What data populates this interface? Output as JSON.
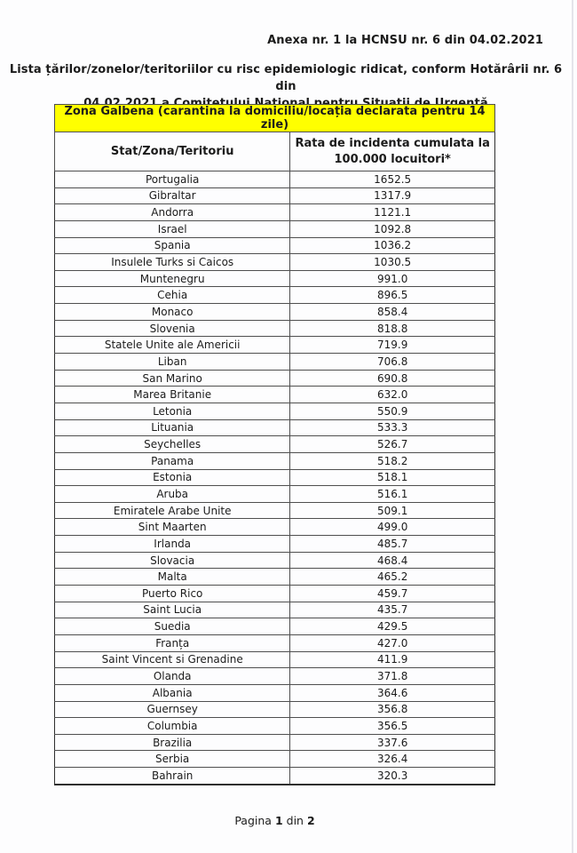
{
  "page": {
    "annex_line": "Anexa nr. 1 la HCNSU nr. 6 din 04.02.2021",
    "title_lines": [
      "Lista țărilor/zonelor/teritoriilor cu risc epidemiologic ridicat, conform Hotărârii nr. 6 din",
      "04.02.2021 a Comitetului Național pentru Situații de Urgență"
    ],
    "footer": {
      "label": "Pagina",
      "page": "1",
      "of_label": "din",
      "total": "2"
    }
  },
  "table": {
    "zone_header": "Zona Galbena (carantina la domiciliu/locația declarata pentru 14 zile)",
    "zone_color": "#ffff00",
    "col1_header": "Stat/Zona/Teritoriu",
    "col2_header_lines": [
      "Rata de incidenta cumulata la",
      "100.000 locuitori*"
    ],
    "rows": [
      {
        "stat": "Portugalia",
        "rata": "1652.5"
      },
      {
        "stat": "Gibraltar",
        "rata": "1317.9"
      },
      {
        "stat": "Andorra",
        "rata": "1121.1"
      },
      {
        "stat": "Israel",
        "rata": "1092.8"
      },
      {
        "stat": "Spania",
        "rata": "1036.2"
      },
      {
        "stat": "Insulele Turks si Caicos",
        "rata": "1030.5"
      },
      {
        "stat": "Muntenegru",
        "rata": "991.0"
      },
      {
        "stat": "Cehia",
        "rata": "896.5"
      },
      {
        "stat": "Monaco",
        "rata": "858.4"
      },
      {
        "stat": "Slovenia",
        "rata": "818.8"
      },
      {
        "stat": "Statele Unite ale Americii",
        "rata": "719.9"
      },
      {
        "stat": "Liban",
        "rata": "706.8"
      },
      {
        "stat": "San Marino",
        "rata": "690.8"
      },
      {
        "stat": "Marea Britanie",
        "rata": "632.0"
      },
      {
        "stat": "Letonia",
        "rata": "550.9"
      },
      {
        "stat": "Lituania",
        "rata": "533.3"
      },
      {
        "stat": "Seychelles",
        "rata": "526.7"
      },
      {
        "stat": "Panama",
        "rata": "518.2"
      },
      {
        "stat": "Estonia",
        "rata": "518.1"
      },
      {
        "stat": "Aruba",
        "rata": "516.1"
      },
      {
        "stat": "Emiratele Arabe Unite",
        "rata": "509.1"
      },
      {
        "stat": "Sint Maarten",
        "rata": "499.0"
      },
      {
        "stat": "Irlanda",
        "rata": "485.7"
      },
      {
        "stat": "Slovacia",
        "rata": "468.4"
      },
      {
        "stat": "Malta",
        "rata": "465.2"
      },
      {
        "stat": "Puerto Rico",
        "rata": "459.7"
      },
      {
        "stat": "Saint Lucia",
        "rata": "435.7"
      },
      {
        "stat": "Suedia",
        "rata": "429.5"
      },
      {
        "stat": "Franța",
        "rata": "427.0"
      },
      {
        "stat": "Saint Vincent si Grenadine",
        "rata": "411.9"
      },
      {
        "stat": "Olanda",
        "rata": "371.8"
      },
      {
        "stat": "Albania",
        "rata": "364.6"
      },
      {
        "stat": "Guernsey",
        "rata": "356.8"
      },
      {
        "stat": "Columbia",
        "rata": "356.5"
      },
      {
        "stat": "Brazilia",
        "rata": "337.6"
      },
      {
        "stat": "Serbia",
        "rata": "326.4"
      },
      {
        "stat": "Bahrain",
        "rata": "320.3"
      }
    ]
  }
}
